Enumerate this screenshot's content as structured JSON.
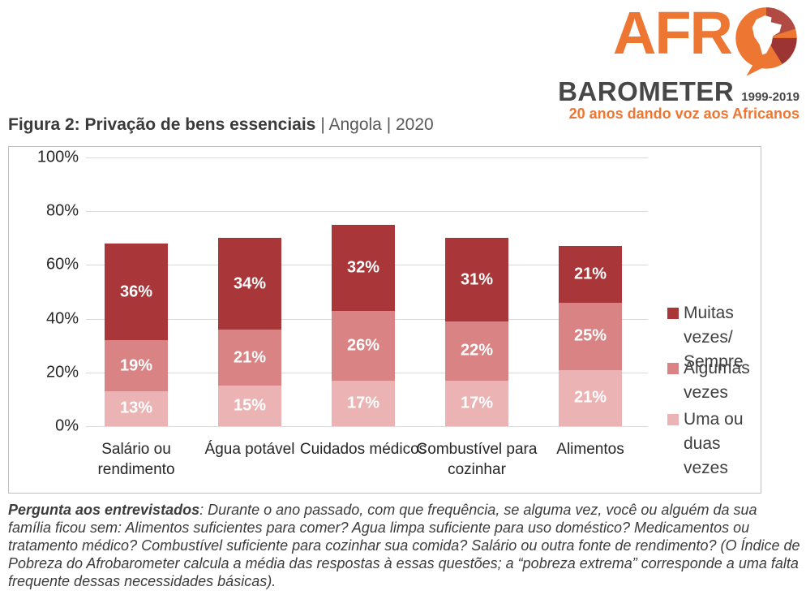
{
  "logo": {
    "brand_top": "AFR",
    "brand_bottom": "BAROMETER",
    "years": "1999-2019",
    "tagline": "20 anos dando voz aos Africanos",
    "orange": "#ED7632",
    "dark_gray": "#474747",
    "bubble_dark_red": "#9C3433",
    "bubble_mid_red": "#B04A42"
  },
  "title": {
    "main": "Figura 2: Privação de bens essenciais",
    "meta": "| Angola | 2020"
  },
  "chart_data": {
    "type": "bar",
    "stacked": true,
    "categories": [
      "Salário ou rendimento",
      "Água potável",
      "Cuidados médicos",
      "Combustível para cozinhar",
      "Alimentos"
    ],
    "series": [
      {
        "name": "Uma ou duas vezes",
        "color": "#EBB3B3",
        "values": [
          13,
          15,
          17,
          17,
          21
        ]
      },
      {
        "name": "Algumas vezes",
        "color": "#D98384",
        "values": [
          19,
          21,
          26,
          22,
          25
        ]
      },
      {
        "name": "Muitas vezes/ Sempre",
        "color": "#A93638",
        "values": [
          36,
          34,
          32,
          31,
          21
        ]
      }
    ],
    "legend_order": [
      "Muitas vezes/ Sempre",
      "Algumas vezes",
      "Uma ou duas vezes"
    ],
    "legend_position": "right",
    "y_ticks": [
      "100%",
      "80%",
      "60%",
      "40%",
      "20%",
      "0%"
    ],
    "ylim": [
      0,
      100
    ],
    "grid": true,
    "value_label_format": "percent",
    "title": "Figura 2: Privação de bens essenciais | Angola | 2020",
    "xlabel": "",
    "ylabel": ""
  },
  "footnote": {
    "lead": "Pergunta aos entrevistados",
    "rest": ": Durante o ano passado, com que frequência, se alguma vez, você ou alguém da sua família ficou sem: Alimentos suficientes para comer? Agua limpa suficiente para uso doméstico? Medicamentos ou tratamento médico? Combustível suficiente para cozinhar sua comida? Salário ou outra fonte de rendimento? (O Índice de Pobreza do Afrobarometer calcula a média das respostas à essas questões; a “pobreza extrema” corresponde a uma falta frequente dessas necessidades básicas)."
  }
}
